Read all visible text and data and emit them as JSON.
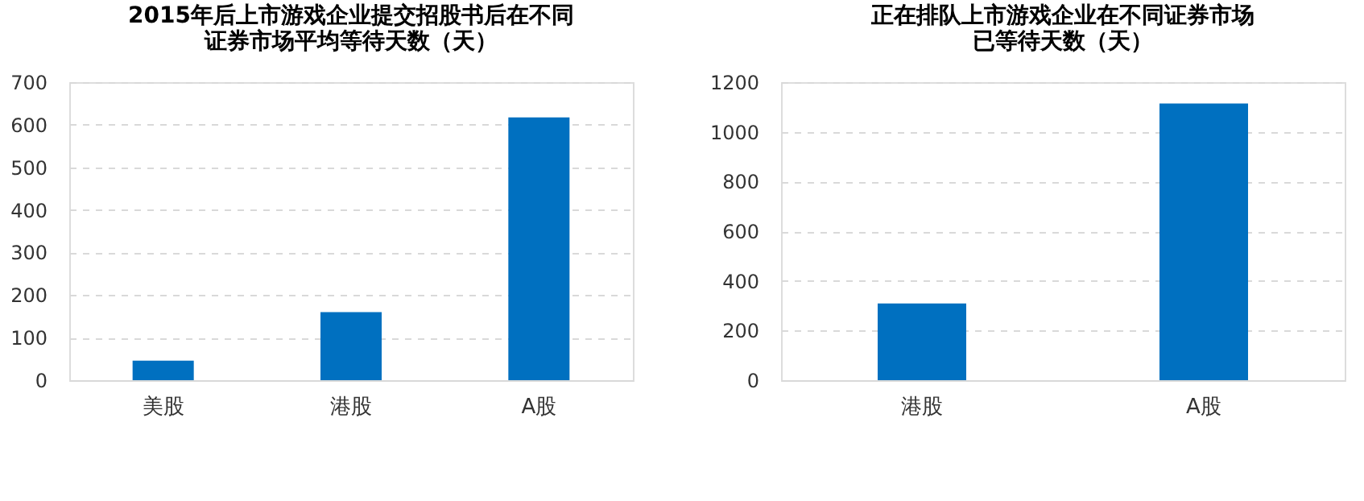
{
  "chart_data": [
    {
      "type": "bar",
      "title": [
        "2015年后上市游戏企业提交招股书后在不同",
        "证券市场平均等待天数（天）"
      ],
      "categories": [
        "美股",
        "港股",
        "A股"
      ],
      "values": [
        46,
        160,
        617
      ],
      "color": "#0070c0",
      "ylim": [
        0,
        700
      ],
      "yticks": [
        0,
        100,
        200,
        300,
        400,
        500,
        600,
        700
      ],
      "grid": "y"
    },
    {
      "type": "bar",
      "title": [
        "正在排队上市游戏企业在不同证券市场",
        "已等待天数（天）"
      ],
      "categories": [
        "港股",
        "A股"
      ],
      "values": [
        309,
        1114
      ],
      "color": "#0070c0",
      "ylim": [
        0,
        1200
      ],
      "yticks": [
        0,
        200,
        400,
        600,
        800,
        1000,
        1200
      ],
      "grid": "y"
    }
  ]
}
